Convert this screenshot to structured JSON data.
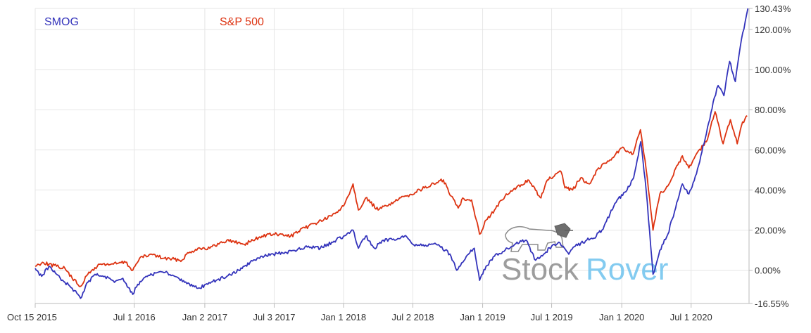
{
  "chart_data": {
    "type": "line",
    "title": "",
    "xlabel": "",
    "ylabel": "",
    "x_ticks": [
      {
        "label": "Oct 15 2015",
        "date": "2015-10-15"
      },
      {
        "label": "Jul 1 2016",
        "date": "2016-07-01"
      },
      {
        "label": "Jan 2 2017",
        "date": "2017-01-02"
      },
      {
        "label": "Jul 3 2017",
        "date": "2017-07-03"
      },
      {
        "label": "Jan 1 2018",
        "date": "2018-01-01"
      },
      {
        "label": "Jul 2 2018",
        "date": "2018-07-02"
      },
      {
        "label": "Jan 1 2019",
        "date": "2019-01-01"
      },
      {
        "label": "Jul 1 2019",
        "date": "2019-07-01"
      },
      {
        "label": "Jan 1 2020",
        "date": "2020-01-01"
      },
      {
        "label": "Jul 1 2020",
        "date": "2020-07-01"
      }
    ],
    "y_ticks": [
      {
        "label": "130.43%",
        "value": 130.43
      },
      {
        "label": "120.00%",
        "value": 120
      },
      {
        "label": "100.00%",
        "value": 100
      },
      {
        "label": "80.00%",
        "value": 80
      },
      {
        "label": "60.00%",
        "value": 60
      },
      {
        "label": "40.00%",
        "value": 40
      },
      {
        "label": "20.00%",
        "value": 20
      },
      {
        "label": "0.00%",
        "value": 0
      },
      {
        "label": "-16.55%",
        "value": -16.55
      }
    ],
    "xlim": [
      "2015-10-15",
      "2020-11-30"
    ],
    "ylim": [
      -16.55,
      130.43
    ],
    "grid": true,
    "legend_position": "top-left",
    "series": [
      {
        "name": "SMOG",
        "color": "#3333bb",
        "points": [
          [
            "2015-10-15",
            1
          ],
          [
            "2015-11-01",
            -3
          ],
          [
            "2015-11-20",
            2
          ],
          [
            "2015-12-10",
            -2
          ],
          [
            "2016-01-01",
            -6
          ],
          [
            "2016-01-20",
            -9
          ],
          [
            "2016-02-11",
            -14
          ],
          [
            "2016-03-01",
            -6
          ],
          [
            "2016-03-20",
            -2
          ],
          [
            "2016-04-15",
            -3
          ],
          [
            "2016-05-10",
            -6
          ],
          [
            "2016-06-01",
            -4
          ],
          [
            "2016-06-27",
            -12
          ],
          [
            "2016-07-10",
            -7
          ],
          [
            "2016-08-01",
            -3
          ],
          [
            "2016-09-01",
            -1
          ],
          [
            "2016-09-20",
            -1
          ],
          [
            "2016-10-15",
            -3
          ],
          [
            "2016-11-10",
            -6
          ],
          [
            "2016-12-01",
            -8
          ],
          [
            "2016-12-15",
            -9
          ],
          [
            "2017-01-10",
            -7
          ],
          [
            "2017-02-01",
            -5
          ],
          [
            "2017-03-01",
            -3
          ],
          [
            "2017-04-01",
            0
          ],
          [
            "2017-05-01",
            4
          ],
          [
            "2017-06-01",
            7
          ],
          [
            "2017-07-01",
            8
          ],
          [
            "2017-08-01",
            9
          ],
          [
            "2017-09-01",
            10
          ],
          [
            "2017-10-01",
            12
          ],
          [
            "2017-11-01",
            11
          ],
          [
            "2017-12-01",
            14
          ],
          [
            "2018-01-01",
            17
          ],
          [
            "2018-01-26",
            20
          ],
          [
            "2018-02-09",
            11
          ],
          [
            "2018-02-28",
            17
          ],
          [
            "2018-03-23",
            11
          ],
          [
            "2018-04-15",
            15
          ],
          [
            "2018-05-15",
            15
          ],
          [
            "2018-06-10",
            17
          ],
          [
            "2018-07-01",
            13
          ],
          [
            "2018-08-01",
            12
          ],
          [
            "2018-09-01",
            13
          ],
          [
            "2018-09-25",
            10
          ],
          [
            "2018-10-10",
            7
          ],
          [
            "2018-10-25",
            0
          ],
          [
            "2018-11-10",
            4
          ],
          [
            "2018-11-25",
            8
          ],
          [
            "2018-12-10",
            11
          ],
          [
            "2018-12-24",
            -5
          ],
          [
            "2019-01-10",
            2
          ],
          [
            "2019-02-01",
            7
          ],
          [
            "2019-03-01",
            10
          ],
          [
            "2019-04-01",
            14
          ],
          [
            "2019-04-25",
            15
          ],
          [
            "2019-05-20",
            5
          ],
          [
            "2019-06-10",
            8
          ],
          [
            "2019-07-01",
            12
          ],
          [
            "2019-07-20",
            14
          ],
          [
            "2019-08-15",
            8
          ],
          [
            "2019-09-01",
            12
          ],
          [
            "2019-10-01",
            15
          ],
          [
            "2019-10-20",
            16
          ],
          [
            "2019-11-10",
            20
          ],
          [
            "2019-12-01",
            28
          ],
          [
            "2019-12-20",
            35
          ],
          [
            "2020-01-15",
            40
          ],
          [
            "2020-02-01",
            46
          ],
          [
            "2020-02-20",
            64
          ],
          [
            "2020-03-05",
            40
          ],
          [
            "2020-03-23",
            -2
          ],
          [
            "2020-04-10",
            10
          ],
          [
            "2020-05-01",
            18
          ],
          [
            "2020-06-08",
            43
          ],
          [
            "2020-06-25",
            38
          ],
          [
            "2020-07-15",
            48
          ],
          [
            "2020-08-10",
            68
          ],
          [
            "2020-08-31",
            86
          ],
          [
            "2020-09-10",
            92
          ],
          [
            "2020-09-25",
            87
          ],
          [
            "2020-10-10",
            104
          ],
          [
            "2020-10-25",
            94
          ],
          [
            "2020-11-10",
            115
          ],
          [
            "2020-11-20",
            124
          ],
          [
            "2020-11-27",
            130.43
          ]
        ]
      },
      {
        "name": "S&P 500",
        "color": "#dd3311",
        "points": [
          [
            "2015-10-15",
            2
          ],
          [
            "2015-11-03",
            4
          ],
          [
            "2015-11-20",
            3
          ],
          [
            "2015-12-10",
            2
          ],
          [
            "2016-01-01",
            1
          ],
          [
            "2016-01-20",
            -4
          ],
          [
            "2016-02-11",
            -8
          ],
          [
            "2016-03-01",
            -2
          ],
          [
            "2016-04-01",
            3
          ],
          [
            "2016-05-01",
            3
          ],
          [
            "2016-06-08",
            4
          ],
          [
            "2016-06-27",
            0
          ],
          [
            "2016-07-15",
            6
          ],
          [
            "2016-08-15",
            8
          ],
          [
            "2016-09-15",
            6
          ],
          [
            "2016-11-03",
            5
          ],
          [
            "2016-11-15",
            8
          ],
          [
            "2016-12-15",
            11
          ],
          [
            "2017-01-15",
            11
          ],
          [
            "2017-03-01",
            15
          ],
          [
            "2017-04-15",
            13
          ],
          [
            "2017-06-01",
            17
          ],
          [
            "2017-07-01",
            18
          ],
          [
            "2017-08-15",
            17
          ],
          [
            "2017-10-01",
            22
          ],
          [
            "2017-12-01",
            27
          ],
          [
            "2018-01-01",
            32
          ],
          [
            "2018-01-26",
            43
          ],
          [
            "2018-02-09",
            30
          ],
          [
            "2018-02-28",
            36
          ],
          [
            "2018-04-02",
            30
          ],
          [
            "2018-05-01",
            33
          ],
          [
            "2018-06-15",
            37
          ],
          [
            "2018-08-01",
            41
          ],
          [
            "2018-09-20",
            45
          ],
          [
            "2018-10-10",
            37
          ],
          [
            "2018-10-29",
            31
          ],
          [
            "2018-11-10",
            36
          ],
          [
            "2018-12-03",
            35
          ],
          [
            "2018-12-24",
            18
          ],
          [
            "2019-01-10",
            25
          ],
          [
            "2019-02-01",
            30
          ],
          [
            "2019-03-01",
            37
          ],
          [
            "2019-04-30",
            45
          ],
          [
            "2019-06-03",
            36
          ],
          [
            "2019-06-20",
            45
          ],
          [
            "2019-07-26",
            49
          ],
          [
            "2019-08-05",
            41
          ],
          [
            "2019-08-25",
            40
          ],
          [
            "2019-09-15",
            46
          ],
          [
            "2019-10-08",
            43
          ],
          [
            "2019-11-01",
            51
          ],
          [
            "2019-12-01",
            55
          ],
          [
            "2020-01-01",
            61
          ],
          [
            "2020-01-31",
            58
          ],
          [
            "2020-02-19",
            70
          ],
          [
            "2020-03-02",
            55
          ],
          [
            "2020-03-23",
            20
          ],
          [
            "2020-04-10",
            38
          ],
          [
            "2020-05-01",
            42
          ],
          [
            "2020-06-08",
            57
          ],
          [
            "2020-06-25",
            51
          ],
          [
            "2020-07-15",
            58
          ],
          [
            "2020-08-10",
            64
          ],
          [
            "2020-09-02",
            79
          ],
          [
            "2020-09-23",
            63
          ],
          [
            "2020-10-12",
            75
          ],
          [
            "2020-10-30",
            63
          ],
          [
            "2020-11-10",
            72
          ],
          [
            "2020-11-25",
            77
          ]
        ]
      }
    ]
  },
  "legend": {
    "smog": {
      "label": "SMOG",
      "color": "#3333bb"
    },
    "sp500": {
      "label": "S&P 500",
      "color": "#dd3311"
    }
  },
  "watermark": {
    "word1": "Stock",
    "word2": "Rover",
    "color1": "#8c8c8c",
    "color2": "#6ec3ee"
  }
}
